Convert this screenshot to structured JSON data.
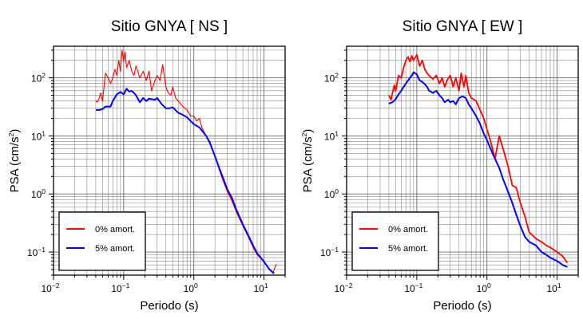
{
  "chart_data": [
    {
      "type": "line",
      "title": "Sitio GNYA [ NS ]",
      "xlabel": "Periodo (s)",
      "ylabel_main": "PSA (cm/s",
      "ylabel_sup": "2",
      "ylabel_tail": ")",
      "xscale": "log",
      "yscale": "log",
      "xlim": [
        0.01,
        20
      ],
      "ylim": [
        0.04,
        350
      ],
      "grid": true,
      "legend_position": "bottom-left",
      "series": [
        {
          "name": "0% amort.",
          "color": "#ff0000",
          "x": [
            0.04,
            0.042,
            0.045,
            0.047,
            0.05,
            0.055,
            0.06,
            0.065,
            0.07,
            0.075,
            0.08,
            0.085,
            0.09,
            0.095,
            0.1,
            0.105,
            0.11,
            0.12,
            0.13,
            0.14,
            0.15,
            0.17,
            0.19,
            0.21,
            0.23,
            0.25,
            0.28,
            0.3,
            0.33,
            0.36,
            0.4,
            0.43,
            0.47,
            0.5,
            0.55,
            0.6,
            0.7,
            0.8,
            0.9,
            1.0,
            1.1,
            1.2,
            1.3,
            1.5,
            1.7,
            2.0,
            2.3,
            2.6,
            3.0,
            3.5,
            4.0,
            5.0,
            6.0,
            7.0,
            8.0,
            10.0,
            12.0,
            13.5,
            15.0
          ],
          "y": [
            40,
            38,
            45,
            55,
            40,
            120,
            100,
            80,
            100,
            140,
            110,
            200,
            130,
            300,
            190,
            280,
            150,
            200,
            130,
            110,
            160,
            100,
            130,
            90,
            130,
            60,
            90,
            110,
            90,
            170,
            70,
            55,
            50,
            70,
            45,
            40,
            32,
            28,
            22,
            22,
            18,
            20,
            14,
            10,
            8.0,
            4.5,
            2.6,
            1.7,
            1.1,
            0.75,
            0.5,
            0.28,
            0.18,
            0.12,
            0.09,
            0.068,
            0.05,
            0.045,
            0.062
          ]
        },
        {
          "name": "5% amort.",
          "color": "#0000ff",
          "x": [
            0.04,
            0.045,
            0.05,
            0.055,
            0.06,
            0.065,
            0.07,
            0.08,
            0.09,
            0.1,
            0.11,
            0.12,
            0.13,
            0.14,
            0.15,
            0.17,
            0.19,
            0.21,
            0.23,
            0.25,
            0.28,
            0.3,
            0.35,
            0.4,
            0.45,
            0.5,
            0.6,
            0.7,
            0.8,
            0.9,
            1.0,
            1.2,
            1.5,
            1.7,
            2.0,
            2.3,
            2.6,
            3.0,
            3.5,
            4.0,
            5.0,
            6.0,
            7.0,
            8.0,
            10.0,
            12.0,
            13.5,
            14.0
          ],
          "y": [
            28,
            28,
            29,
            32,
            32,
            32,
            40,
            52,
            57,
            52,
            65,
            58,
            60,
            55,
            50,
            38,
            45,
            40,
            44,
            43,
            42,
            45,
            35,
            30,
            30,
            31,
            25,
            23,
            21,
            18,
            16,
            14,
            10,
            7.5,
            4.5,
            2.8,
            1.9,
            1.2,
            0.85,
            0.55,
            0.3,
            0.19,
            0.13,
            0.095,
            0.068,
            0.05,
            0.044,
            0.043
          ]
        }
      ]
    },
    {
      "type": "line",
      "title": "Sitio GNYA [ EW ]",
      "xlabel": "Periodo (s)",
      "ylabel_main": "PSA (cm/s",
      "ylabel_sup": "2",
      "ylabel_tail": ")",
      "xscale": "log",
      "yscale": "log",
      "xlim": [
        0.01,
        20
      ],
      "ylim": [
        0.04,
        350
      ],
      "grid": true,
      "legend_position": "bottom-left",
      "series": [
        {
          "name": "0% amort.",
          "color": "#ff0000",
          "x": [
            0.04,
            0.043,
            0.045,
            0.048,
            0.05,
            0.055,
            0.06,
            0.065,
            0.07,
            0.075,
            0.08,
            0.085,
            0.09,
            0.1,
            0.11,
            0.12,
            0.13,
            0.14,
            0.15,
            0.17,
            0.19,
            0.21,
            0.23,
            0.25,
            0.27,
            0.3,
            0.33,
            0.36,
            0.4,
            0.43,
            0.47,
            0.5,
            0.55,
            0.6,
            0.7,
            0.8,
            0.9,
            1.0,
            1.1,
            1.2,
            1.3,
            1.5,
            1.7,
            2.0,
            2.3,
            2.6,
            3.0,
            3.5,
            4.0,
            5.0,
            6.0,
            7.0,
            8.0,
            10.0,
            12.0,
            14.0
          ],
          "y": [
            50,
            42,
            55,
            75,
            60,
            110,
            100,
            150,
            200,
            230,
            190,
            240,
            200,
            250,
            160,
            200,
            140,
            120,
            110,
            95,
            110,
            80,
            100,
            70,
            90,
            110,
            70,
            100,
            60,
            120,
            70,
            110,
            55,
            45,
            40,
            28,
            20,
            13,
            9.0,
            6.0,
            4.0,
            10.0,
            6.0,
            3.0,
            1.4,
            1.3,
            0.7,
            0.4,
            0.22,
            0.17,
            0.15,
            0.13,
            0.12,
            0.1,
            0.085,
            0.065
          ]
        },
        {
          "name": "5% amort.",
          "color": "#0000ff",
          "x": [
            0.04,
            0.045,
            0.05,
            0.055,
            0.06,
            0.065,
            0.07,
            0.075,
            0.08,
            0.085,
            0.09,
            0.1,
            0.11,
            0.12,
            0.13,
            0.14,
            0.15,
            0.17,
            0.19,
            0.21,
            0.23,
            0.25,
            0.28,
            0.3,
            0.33,
            0.36,
            0.4,
            0.45,
            0.5,
            0.55,
            0.6,
            0.7,
            0.8,
            0.9,
            1.0,
            1.2,
            1.5,
            1.7,
            2.0,
            2.3,
            2.6,
            3.0,
            3.5,
            4.0,
            5.0,
            6.0,
            7.0,
            8.0,
            10.0,
            12.0,
            14.0
          ],
          "y": [
            36,
            38,
            43,
            52,
            60,
            70,
            80,
            90,
            100,
            110,
            125,
            115,
            90,
            85,
            78,
            70,
            60,
            55,
            60,
            50,
            45,
            38,
            42,
            38,
            40,
            35,
            45,
            48,
            45,
            35,
            30,
            22,
            16,
            11,
            8.5,
            5.0,
            2.8,
            1.8,
            1.1,
            0.7,
            0.45,
            0.28,
            0.18,
            0.15,
            0.13,
            0.1,
            0.09,
            0.08,
            0.07,
            0.06,
            0.055
          ]
        }
      ]
    }
  ]
}
